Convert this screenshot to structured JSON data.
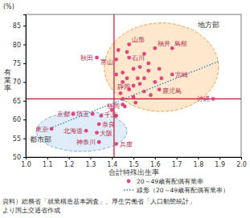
{
  "chart_data": {
    "type": "scatter",
    "xlabel": "合計特殊出生率",
    "ylabel": "有業率",
    "y_unit": "(%)",
    "source": [
      "資料）総務省「就業構造基本調査」、厚生労働省「人口動態統計」",
      "より国土交通省作成"
    ],
    "xlim": [
      1.0,
      2.0
    ],
    "xticks": [
      {
        "value": 1.0,
        "label": "1.0"
      },
      1.1,
      1.2,
      1.3,
      1.4,
      1.5,
      1.6,
      1.7,
      1.8,
      1.9,
      {
        "value": 2.0,
        "label": "2.0"
      }
    ],
    "ylim": [
      50,
      88
    ],
    "yticks": [
      50,
      55,
      60,
      65,
      70,
      75,
      80,
      85
    ],
    "grid": false,
    "legend": "bottom",
    "series": [
      {
        "name": "20～49歳有配偶有業率",
        "type": "scatter",
        "marker": "circle",
        "color": "#e0457b",
        "x": [
          1.48,
          1.6,
          1.68,
          1.33,
          1.42,
          1.48,
          1.68,
          1.62,
          1.5,
          1.87,
          1.45,
          1.22,
          1.31,
          1.35,
          1.34,
          1.12,
          1.28,
          1.33,
          1.34,
          1.42,
          1.43,
          1.47,
          1.55,
          1.57,
          1.53,
          1.5,
          1.57,
          1.62,
          1.63,
          1.55,
          1.52,
          1.47,
          1.45,
          1.42,
          1.45,
          1.53,
          1.6,
          1.48,
          1.55,
          1.44,
          1.5,
          1.58,
          1.45,
          1.4,
          1.42,
          1.46,
          1.51
        ],
        "values": [
          80,
          79,
          79,
          76.5,
          76,
          76.5,
          72,
          68,
          69,
          65.5,
          64,
          61.5,
          61.5,
          61,
          58.8,
          57.5,
          57,
          56.5,
          54,
          53.5,
          78.5,
          78,
          77.5,
          75,
          74,
          73.5,
          73,
          73.5,
          71,
          71,
          71,
          71,
          72.5,
          72,
          70,
          69.5,
          70,
          68,
          67.5,
          67,
          66,
          66.5,
          65.5,
          62.5,
          61,
          63.5,
          64.5
        ],
        "labels": [
          "山形",
          "福井",
          "島根",
          "秋田",
          "富山",
          "石川",
          "宮崎",
          "鹿児島",
          "静岡",
          "沖縄",
          "福岡",
          "京都",
          "埼玉",
          "千葉",
          "奈良",
          "東京",
          "北海道",
          "大阪",
          "神奈川",
          "兵庫",
          null,
          null,
          null,
          null,
          null,
          null,
          null,
          null,
          null,
          null,
          null,
          null,
          null,
          null,
          null,
          null,
          null,
          null,
          null,
          null,
          null,
          null,
          null,
          null,
          null,
          null,
          null
        ]
      },
      {
        "name": "線形（20～49歳有配偶有業率）",
        "type": "line",
        "line_style": "dotted",
        "color": "#3a7cc4",
        "x": [
          1.1,
          1.9
        ],
        "values": [
          57.4,
          75.6
        ]
      }
    ],
    "reference_lines": [
      {
        "axis": "x",
        "value": 1.41,
        "color": "#c8102e"
      },
      {
        "axis": "y",
        "value": 65.5,
        "color": "#c8102e"
      }
    ],
    "annotations": [
      {
        "text": "地方部",
        "x": 1.8,
        "y": 84.5
      },
      {
        "text": "都市部",
        "x": 1.02,
        "y": 54
      }
    ]
  }
}
